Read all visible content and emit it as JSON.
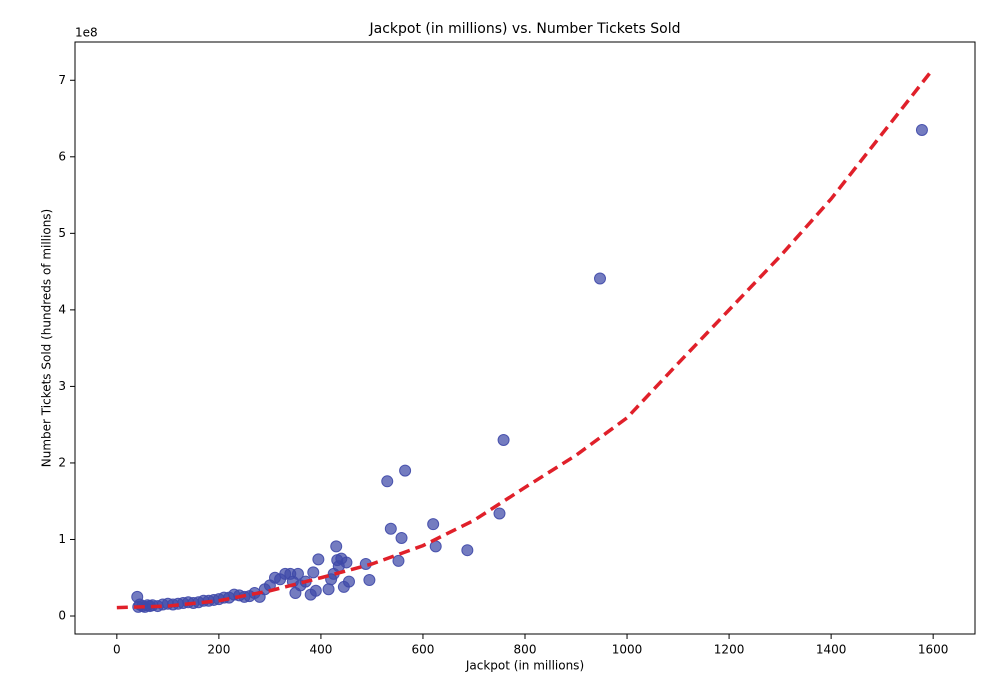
{
  "chart_data": {
    "type": "scatter",
    "title": "Jackpot (in millions) vs. Number Tickets Sold",
    "x_label": "Jackpot (in millions)",
    "y_label": "Number Tickets Sold (hundreds of millions)",
    "y_offset_label": "1e8",
    "xlim": [
      -82,
      1682
    ],
    "ylim": [
      -0.235,
      7.5
    ],
    "xticks": [
      0,
      200,
      400,
      600,
      800,
      1000,
      1200,
      1400,
      1600
    ],
    "yticks": [
      0,
      1,
      2,
      3,
      4,
      5,
      6,
      7
    ],
    "series": [
      {
        "kind": "points",
        "color": "#3f49a8",
        "x": [
          40,
          42,
          45,
          50,
          55,
          60,
          65,
          70,
          80,
          90,
          100,
          110,
          120,
          130,
          140,
          150,
          160,
          170,
          180,
          190,
          200,
          210,
          220,
          230,
          240,
          250,
          260,
          270,
          280,
          290,
          300,
          310,
          320,
          330,
          340,
          345,
          350,
          355,
          360,
          370,
          380,
          385,
          390,
          395,
          415,
          420,
          425,
          430,
          432,
          435,
          440,
          445,
          450,
          455,
          488,
          495,
          530,
          537,
          552,
          558,
          565,
          620,
          625,
          687,
          750,
          758,
          947,
          1578
        ],
        "values": [
          0.25,
          0.12,
          0.15,
          0.13,
          0.12,
          0.14,
          0.13,
          0.14,
          0.13,
          0.15,
          0.16,
          0.15,
          0.16,
          0.17,
          0.18,
          0.17,
          0.18,
          0.2,
          0.2,
          0.21,
          0.22,
          0.24,
          0.24,
          0.28,
          0.27,
          0.25,
          0.26,
          0.3,
          0.25,
          0.35,
          0.4,
          0.5,
          0.48,
          0.55,
          0.55,
          0.45,
          0.3,
          0.55,
          0.4,
          0.45,
          0.28,
          0.57,
          0.33,
          0.74,
          0.35,
          0.48,
          0.55,
          0.91,
          0.73,
          0.65,
          0.75,
          0.38,
          0.7,
          0.45,
          0.68,
          0.47,
          1.76,
          1.14,
          0.72,
          1.02,
          1.9,
          1.2,
          0.91,
          0.86,
          1.34,
          2.3,
          4.41,
          6.35
        ]
      },
      {
        "kind": "dashed-line",
        "color": "#e0202a",
        "x": [
          0,
          100,
          200,
          300,
          400,
          500,
          600,
          700,
          800,
          900,
          1000,
          1100,
          1200,
          1300,
          1400,
          1500,
          1600
        ],
        "values": [
          0.11,
          0.13,
          0.2,
          0.33,
          0.5,
          0.68,
          0.92,
          1.25,
          1.68,
          2.1,
          2.59,
          3.3,
          4.0,
          4.7,
          5.45,
          6.3,
          7.15
        ]
      }
    ]
  }
}
